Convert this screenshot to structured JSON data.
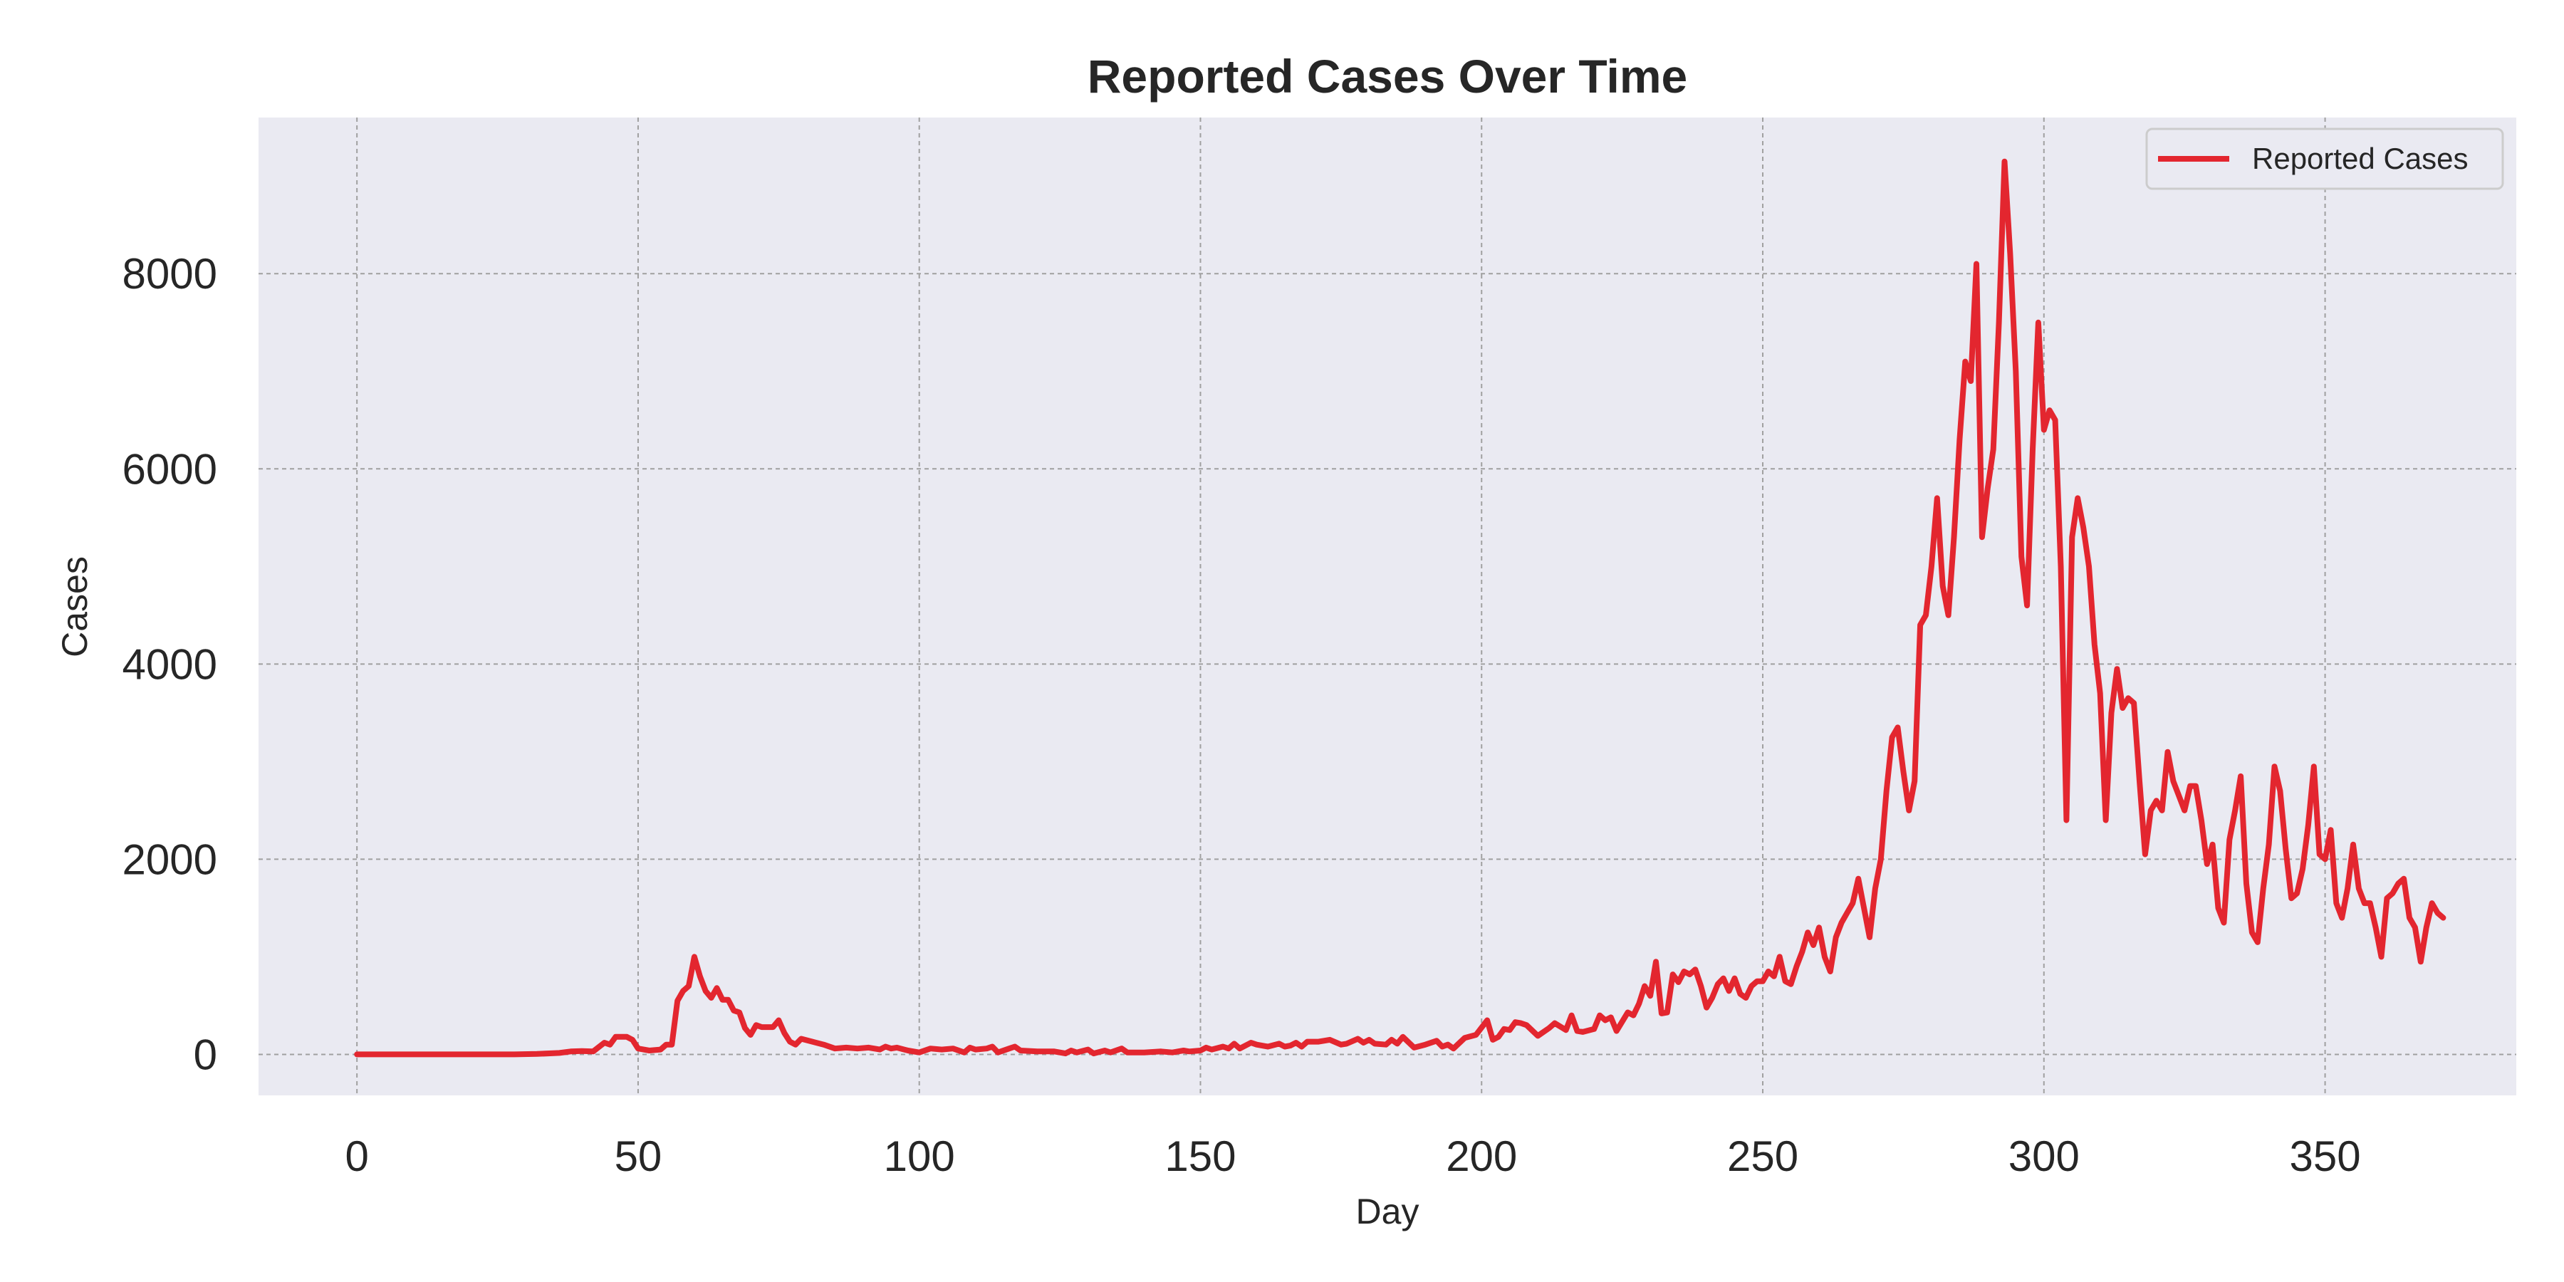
{
  "colors": {
    "figure_background": "#ffffff",
    "plot_background": "#eaeaf2",
    "line": "#e3262f",
    "grid": "#a0a0a0",
    "text": "#262626"
  },
  "chart_data": {
    "type": "line",
    "title": "Reported Cases Over Time",
    "xlabel": "Day",
    "ylabel": "Cases",
    "xlim": [
      -17.5,
      384
    ],
    "ylim": [
      -420,
      9600
    ],
    "xticks": [
      0,
      50,
      100,
      150,
      200,
      250,
      300,
      350
    ],
    "yticks": [
      0,
      2000,
      4000,
      6000,
      8000
    ],
    "grid": true,
    "legend_position": "top-right",
    "series": [
      {
        "name": "Reported Cases",
        "color": "#e3262f",
        "points": [
          [
            0,
            0
          ],
          [
            10,
            0
          ],
          [
            20,
            0
          ],
          [
            28,
            0
          ],
          [
            32,
            5
          ],
          [
            36,
            15
          ],
          [
            38,
            30
          ],
          [
            40,
            35
          ],
          [
            42,
            30
          ],
          [
            44,
            120
          ],
          [
            45,
            100
          ],
          [
            46,
            180
          ],
          [
            48,
            180
          ],
          [
            49,
            150
          ],
          [
            50,
            60
          ],
          [
            52,
            40
          ],
          [
            54,
            50
          ],
          [
            55,
            100
          ],
          [
            56,
            100
          ],
          [
            57,
            550
          ],
          [
            58,
            650
          ],
          [
            59,
            700
          ],
          [
            60,
            1000
          ],
          [
            61,
            800
          ],
          [
            62,
            650
          ],
          [
            63,
            580
          ],
          [
            64,
            680
          ],
          [
            65,
            560
          ],
          [
            66,
            560
          ],
          [
            67,
            450
          ],
          [
            68,
            430
          ],
          [
            69,
            270
          ],
          [
            70,
            200
          ],
          [
            71,
            300
          ],
          [
            72,
            280
          ],
          [
            73,
            280
          ],
          [
            74,
            280
          ],
          [
            75,
            350
          ],
          [
            76,
            220
          ],
          [
            77,
            130
          ],
          [
            78,
            100
          ],
          [
            79,
            160
          ],
          [
            81,
            130
          ],
          [
            83,
            100
          ],
          [
            85,
            60
          ],
          [
            87,
            70
          ],
          [
            89,
            60
          ],
          [
            91,
            70
          ],
          [
            93,
            50
          ],
          [
            94,
            80
          ],
          [
            95,
            60
          ],
          [
            96,
            70
          ],
          [
            98,
            40
          ],
          [
            100,
            20
          ],
          [
            102,
            60
          ],
          [
            104,
            50
          ],
          [
            106,
            60
          ],
          [
            108,
            20
          ],
          [
            109,
            70
          ],
          [
            110,
            50
          ],
          [
            112,
            60
          ],
          [
            113,
            80
          ],
          [
            114,
            20
          ],
          [
            116,
            60
          ],
          [
            117,
            80
          ],
          [
            118,
            40
          ],
          [
            121,
            30
          ],
          [
            124,
            30
          ],
          [
            126,
            10
          ],
          [
            127,
            40
          ],
          [
            128,
            20
          ],
          [
            130,
            50
          ],
          [
            131,
            10
          ],
          [
            133,
            40
          ],
          [
            134,
            20
          ],
          [
            136,
            60
          ],
          [
            137,
            20
          ],
          [
            140,
            20
          ],
          [
            143,
            30
          ],
          [
            145,
            20
          ],
          [
            147,
            40
          ],
          [
            148,
            30
          ],
          [
            150,
            40
          ],
          [
            151,
            70
          ],
          [
            152,
            50
          ],
          [
            154,
            80
          ],
          [
            155,
            60
          ],
          [
            156,
            110
          ],
          [
            157,
            60
          ],
          [
            159,
            120
          ],
          [
            160,
            100
          ],
          [
            162,
            80
          ],
          [
            164,
            110
          ],
          [
            165,
            80
          ],
          [
            166,
            90
          ],
          [
            167,
            120
          ],
          [
            168,
            80
          ],
          [
            169,
            130
          ],
          [
            171,
            130
          ],
          [
            173,
            150
          ],
          [
            175,
            100
          ],
          [
            176,
            110
          ],
          [
            178,
            160
          ],
          [
            179,
            120
          ],
          [
            180,
            150
          ],
          [
            181,
            110
          ],
          [
            183,
            100
          ],
          [
            184,
            150
          ],
          [
            185,
            110
          ],
          [
            186,
            180
          ],
          [
            188,
            70
          ],
          [
            190,
            100
          ],
          [
            192,
            140
          ],
          [
            193,
            80
          ],
          [
            194,
            100
          ],
          [
            195,
            60
          ],
          [
            197,
            170
          ],
          [
            199,
            200
          ],
          [
            201,
            350
          ],
          [
            202,
            150
          ],
          [
            203,
            180
          ],
          [
            204,
            260
          ],
          [
            205,
            250
          ],
          [
            206,
            330
          ],
          [
            207,
            320
          ],
          [
            208,
            300
          ],
          [
            210,
            190
          ],
          [
            212,
            270
          ],
          [
            213,
            320
          ],
          [
            215,
            250
          ],
          [
            216,
            400
          ],
          [
            217,
            240
          ],
          [
            218,
            230
          ],
          [
            220,
            260
          ],
          [
            221,
            400
          ],
          [
            222,
            350
          ],
          [
            223,
            380
          ],
          [
            224,
            240
          ],
          [
            226,
            430
          ],
          [
            227,
            400
          ],
          [
            228,
            520
          ],
          [
            229,
            700
          ],
          [
            230,
            600
          ],
          [
            231,
            950
          ],
          [
            232,
            420
          ],
          [
            233,
            430
          ],
          [
            234,
            820
          ],
          [
            235,
            740
          ],
          [
            236,
            850
          ],
          [
            237,
            820
          ],
          [
            238,
            870
          ],
          [
            239,
            700
          ],
          [
            240,
            480
          ],
          [
            241,
            580
          ],
          [
            242,
            720
          ],
          [
            243,
            780
          ],
          [
            244,
            650
          ],
          [
            245,
            780
          ],
          [
            246,
            620
          ],
          [
            247,
            580
          ],
          [
            248,
            700
          ],
          [
            249,
            750
          ],
          [
            250,
            750
          ],
          [
            251,
            850
          ],
          [
            252,
            800
          ],
          [
            253,
            1000
          ],
          [
            254,
            750
          ],
          [
            255,
            720
          ],
          [
            256,
            900
          ],
          [
            257,
            1050
          ],
          [
            258,
            1250
          ],
          [
            259,
            1120
          ],
          [
            260,
            1300
          ],
          [
            261,
            1000
          ],
          [
            262,
            850
          ],
          [
            263,
            1200
          ],
          [
            264,
            1350
          ],
          [
            265,
            1450
          ],
          [
            266,
            1550
          ],
          [
            267,
            1800
          ],
          [
            268,
            1500
          ],
          [
            269,
            1200
          ],
          [
            270,
            1700
          ],
          [
            271,
            2000
          ],
          [
            272,
            2700
          ],
          [
            273,
            3250
          ],
          [
            274,
            3350
          ],
          [
            275,
            2900
          ],
          [
            276,
            2500
          ],
          [
            277,
            2800
          ],
          [
            278,
            4400
          ],
          [
            279,
            4500
          ],
          [
            280,
            5000
          ],
          [
            281,
            5700
          ],
          [
            282,
            4800
          ],
          [
            283,
            4500
          ],
          [
            284,
            5300
          ],
          [
            285,
            6300
          ],
          [
            286,
            7100
          ],
          [
            287,
            6900
          ],
          [
            288,
            8100
          ],
          [
            289,
            5300
          ],
          [
            290,
            5800
          ],
          [
            291,
            6200
          ],
          [
            292,
            7500
          ],
          [
            293,
            9150
          ],
          [
            294,
            8200
          ],
          [
            295,
            7000
          ],
          [
            296,
            5100
          ],
          [
            297,
            4600
          ],
          [
            298,
            6200
          ],
          [
            299,
            7500
          ],
          [
            300,
            6400
          ],
          [
            301,
            6600
          ],
          [
            302,
            6500
          ],
          [
            303,
            5000
          ],
          [
            304,
            2400
          ],
          [
            305,
            5300
          ],
          [
            306,
            5700
          ],
          [
            307,
            5400
          ],
          [
            308,
            5000
          ],
          [
            309,
            4200
          ],
          [
            310,
            3700
          ],
          [
            311,
            2400
          ],
          [
            312,
            3500
          ],
          [
            313,
            3950
          ],
          [
            314,
            3550
          ],
          [
            315,
            3650
          ],
          [
            316,
            3600
          ],
          [
            317,
            2800
          ],
          [
            318,
            2050
          ],
          [
            319,
            2500
          ],
          [
            320,
            2600
          ],
          [
            321,
            2500
          ],
          [
            322,
            3100
          ],
          [
            323,
            2800
          ],
          [
            324,
            2650
          ],
          [
            325,
            2500
          ],
          [
            326,
            2750
          ],
          [
            327,
            2750
          ],
          [
            328,
            2400
          ],
          [
            329,
            1950
          ],
          [
            330,
            2150
          ],
          [
            331,
            1500
          ],
          [
            332,
            1350
          ],
          [
            333,
            2200
          ],
          [
            334,
            2500
          ],
          [
            335,
            2850
          ],
          [
            336,
            1750
          ],
          [
            337,
            1250
          ],
          [
            338,
            1150
          ],
          [
            339,
            1700
          ],
          [
            340,
            2150
          ],
          [
            341,
            2950
          ],
          [
            342,
            2700
          ],
          [
            343,
            2100
          ],
          [
            344,
            1600
          ],
          [
            345,
            1650
          ],
          [
            346,
            1900
          ],
          [
            347,
            2350
          ],
          [
            348,
            2950
          ],
          [
            349,
            2050
          ],
          [
            350,
            2000
          ],
          [
            351,
            2300
          ],
          [
            352,
            1550
          ],
          [
            353,
            1400
          ],
          [
            354,
            1700
          ],
          [
            355,
            2150
          ],
          [
            356,
            1700
          ],
          [
            357,
            1550
          ],
          [
            358,
            1550
          ],
          [
            359,
            1300
          ],
          [
            360,
            1000
          ],
          [
            361,
            1600
          ],
          [
            362,
            1650
          ],
          [
            363,
            1750
          ],
          [
            364,
            1800
          ],
          [
            365,
            1400
          ],
          [
            366,
            1300
          ],
          [
            367,
            950
          ],
          [
            368,
            1300
          ],
          [
            369,
            1550
          ],
          [
            370,
            1450
          ],
          [
            371,
            1400
          ]
        ]
      }
    ]
  }
}
